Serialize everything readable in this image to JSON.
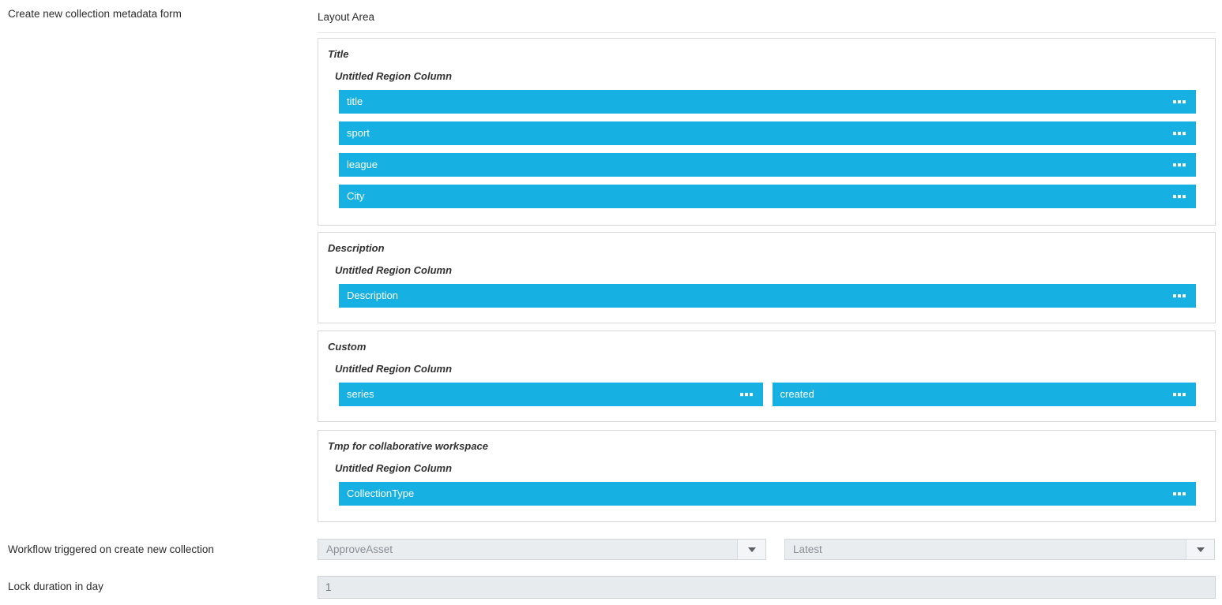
{
  "header": {
    "form_label": "Create new collection metadata form",
    "layout_area_label": "Layout Area"
  },
  "layout_area": {
    "sections": [
      {
        "title": "Title",
        "region_label": "Untitled Region Column",
        "columns": 1,
        "fields": [
          "title",
          "sport",
          "league",
          "City"
        ]
      },
      {
        "title": "Description",
        "region_label": "Untitled Region Column",
        "columns": 1,
        "fields": [
          "Description"
        ]
      },
      {
        "title": "Custom",
        "region_label": "Untitled Region Column",
        "columns": 2,
        "fields": [
          "series",
          "created"
        ]
      },
      {
        "title": "Tmp for collaborative workspace",
        "region_label": "Untitled Region Column",
        "columns": 1,
        "fields": [
          "CollectionType"
        ]
      }
    ]
  },
  "workflow": {
    "label": "Workflow triggered on create new collection",
    "workflow_select_value": "ApproveAsset",
    "version_select_value": "Latest"
  },
  "lock_duration": {
    "label": "Lock duration in day",
    "value": "1"
  },
  "colors": {
    "accent_blue": "#16b1e2",
    "field_text": "#ffffff",
    "select_bg": "#e9edf0",
    "input_bg": "#e8ebee",
    "section_border": "#d8d8d8"
  }
}
